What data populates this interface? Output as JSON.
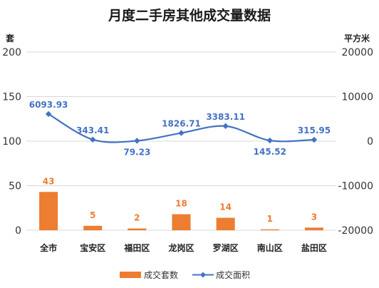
{
  "chart_data": {
    "type": "bar+line",
    "title": "月度二手房其他成交量数据",
    "y_left_unit": "套",
    "y_right_unit": "平方米",
    "y_left_range": [
      0,
      200
    ],
    "y_right_range": [
      -20000,
      20000
    ],
    "y_left_ticks": [
      "0",
      "50",
      "100",
      "150",
      "200"
    ],
    "y_right_ticks": [
      "-20000",
      "-10000",
      "0",
      "10000",
      "20000"
    ],
    "categories": [
      "全市",
      "宝安区",
      "福田区",
      "龙岗区",
      "罗湖区",
      "南山区",
      "盐田区"
    ],
    "series": [
      {
        "name": "成交套数",
        "type": "bar",
        "axis": "left",
        "color": "#ED7D31",
        "values": [
          43,
          5,
          2,
          18,
          14,
          1,
          3
        ],
        "labels": [
          "43",
          "5",
          "2",
          "18",
          "14",
          "1",
          "3"
        ]
      },
      {
        "name": "成交面积",
        "type": "line",
        "axis": "right",
        "color": "#4472C4",
        "values": [
          6093.93,
          343.41,
          79.23,
          1826.71,
          3383.11,
          145.52,
          315.95
        ],
        "labels": [
          "6093.93",
          "343.41",
          "79.23",
          "1826.71",
          "3383.11",
          "145.52",
          "315.95"
        ]
      }
    ],
    "grid": true,
    "legend_position": "bottom"
  }
}
